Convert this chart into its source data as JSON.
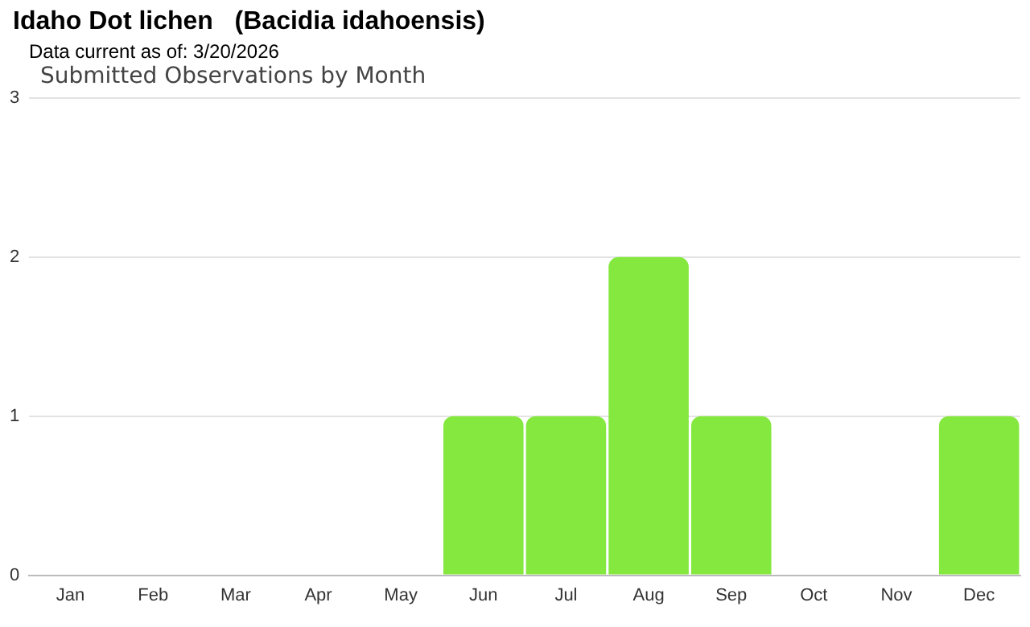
{
  "chart_data": {
    "type": "bar",
    "title": "Idaho Dot lichen   (Bacidia idahoensis)",
    "subtitle": "Data current as of: 3/20/2026",
    "annotations": [
      "Submitted Observations by Month"
    ],
    "categories": [
      "Jan",
      "Feb",
      "Mar",
      "Apr",
      "May",
      "Jun",
      "Jul",
      "Aug",
      "Sep",
      "Oct",
      "Nov",
      "Dec"
    ],
    "values": [
      0,
      0,
      0,
      0,
      0,
      1,
      1,
      2,
      1,
      0,
      0,
      1
    ],
    "color": "#84e83e",
    "ylim": [
      0,
      3
    ],
    "yticks": [
      0,
      1,
      2,
      3
    ],
    "grid": "y"
  }
}
